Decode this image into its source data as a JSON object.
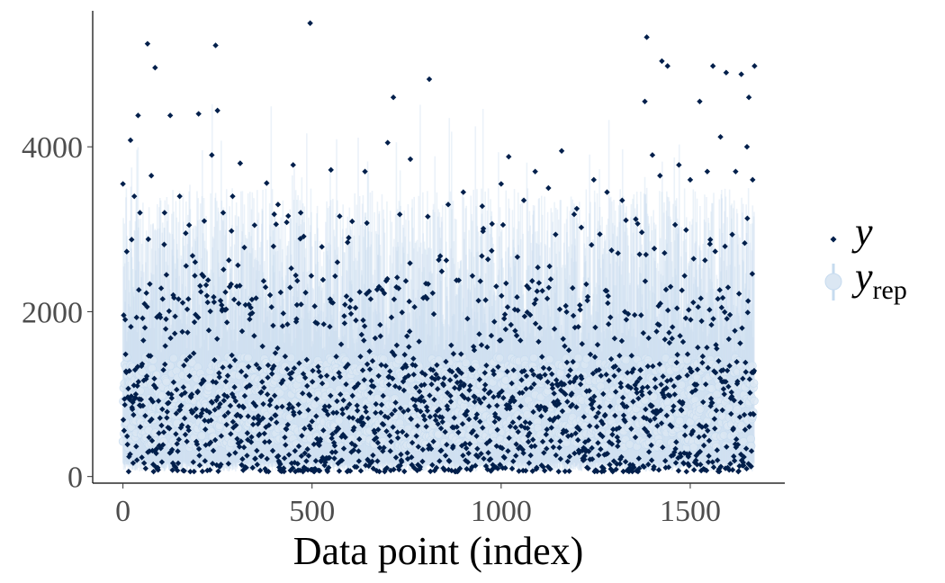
{
  "chart_data": {
    "type": "scatter",
    "title": "",
    "xlabel": "Data point (index)",
    "ylabel": "",
    "xlim": [
      -80,
      1750
    ],
    "ylim": [
      -80,
      5650
    ],
    "x_ticks": [
      0,
      500,
      1000,
      1500
    ],
    "y_ticks": [
      0,
      2000,
      4000
    ],
    "x_tick_labels": [
      "0",
      "500",
      "1000",
      "1500"
    ],
    "y_tick_labels": [
      "0",
      "2000",
      "4000"
    ],
    "n_points": 1670,
    "grid": false,
    "legend_position": "right",
    "legend": [
      {
        "key": "y",
        "label": "y",
        "subscript": "",
        "color": "#011f4b",
        "marker": "diamond"
      },
      {
        "key": "yrep",
        "label": "y",
        "subscript": "rep",
        "color": "#c6dbef",
        "marker": "circle-with-interval"
      }
    ],
    "series": [
      {
        "name": "y",
        "color": "#011f4b",
        "outliers": [
          {
            "x": 0,
            "y": 3550
          },
          {
            "x": 20,
            "y": 4080
          },
          {
            "x": 30,
            "y": 3400
          },
          {
            "x": 40,
            "y": 4380
          },
          {
            "x": 45,
            "y": 3200
          },
          {
            "x": 65,
            "y": 5250
          },
          {
            "x": 75,
            "y": 3650
          },
          {
            "x": 85,
            "y": 4960
          },
          {
            "x": 110,
            "y": 3200
          },
          {
            "x": 125,
            "y": 4380
          },
          {
            "x": 150,
            "y": 3400
          },
          {
            "x": 175,
            "y": 3050
          },
          {
            "x": 200,
            "y": 4400
          },
          {
            "x": 215,
            "y": 3100
          },
          {
            "x": 235,
            "y": 3900
          },
          {
            "x": 245,
            "y": 5230
          },
          {
            "x": 250,
            "y": 4440
          },
          {
            "x": 265,
            "y": 3200
          },
          {
            "x": 290,
            "y": 3400
          },
          {
            "x": 310,
            "y": 3800
          },
          {
            "x": 380,
            "y": 3560
          },
          {
            "x": 410,
            "y": 3300
          },
          {
            "x": 450,
            "y": 3780
          },
          {
            "x": 470,
            "y": 3200
          },
          {
            "x": 495,
            "y": 5500
          },
          {
            "x": 550,
            "y": 3720
          },
          {
            "x": 640,
            "y": 3700
          },
          {
            "x": 700,
            "y": 4050
          },
          {
            "x": 715,
            "y": 4600
          },
          {
            "x": 760,
            "y": 3850
          },
          {
            "x": 810,
            "y": 4820
          },
          {
            "x": 860,
            "y": 3300
          },
          {
            "x": 900,
            "y": 3450
          },
          {
            "x": 950,
            "y": 3280
          },
          {
            "x": 1000,
            "y": 3550
          },
          {
            "x": 1020,
            "y": 3880
          },
          {
            "x": 1060,
            "y": 3350
          },
          {
            "x": 1090,
            "y": 3700
          },
          {
            "x": 1125,
            "y": 3500
          },
          {
            "x": 1160,
            "y": 3950
          },
          {
            "x": 1200,
            "y": 3250
          },
          {
            "x": 1245,
            "y": 3600
          },
          {
            "x": 1280,
            "y": 3450
          },
          {
            "x": 1320,
            "y": 3350
          },
          {
            "x": 1380,
            "y": 4550
          },
          {
            "x": 1385,
            "y": 5330
          },
          {
            "x": 1400,
            "y": 3900
          },
          {
            "x": 1420,
            "y": 3650
          },
          {
            "x": 1425,
            "y": 5040
          },
          {
            "x": 1440,
            "y": 4980
          },
          {
            "x": 1470,
            "y": 3780
          },
          {
            "x": 1500,
            "y": 3600
          },
          {
            "x": 1525,
            "y": 4550
          },
          {
            "x": 1545,
            "y": 3700
          },
          {
            "x": 1560,
            "y": 4980
          },
          {
            "x": 1580,
            "y": 4120
          },
          {
            "x": 1595,
            "y": 4900
          },
          {
            "x": 1620,
            "y": 3700
          },
          {
            "x": 1635,
            "y": 4880
          },
          {
            "x": 1650,
            "y": 4000
          },
          {
            "x": 1655,
            "y": 4600
          },
          {
            "x": 1665,
            "y": 3600
          },
          {
            "x": 1670,
            "y": 4980
          }
        ]
      },
      {
        "name": "y_rep",
        "color": "#c6dbef"
      }
    ]
  }
}
